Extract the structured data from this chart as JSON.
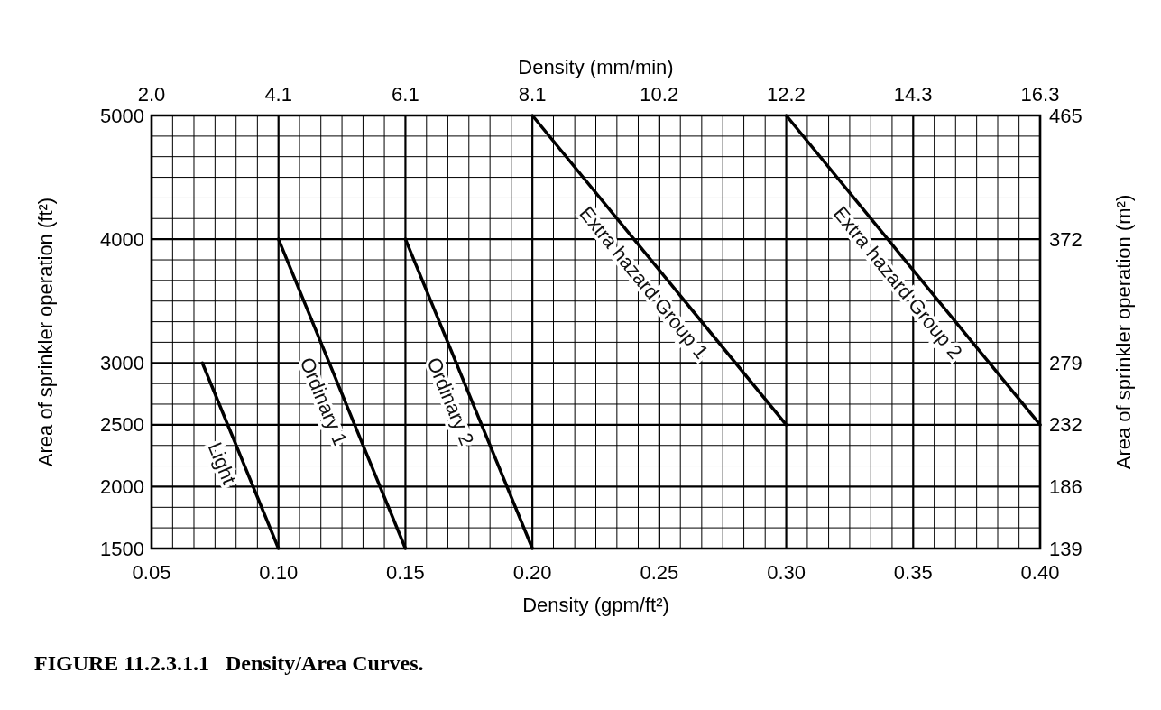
{
  "chart_data": {
    "type": "line",
    "title": "FIGURE 11.2.3.1.1   Density/Area Curves.",
    "xlabel": "Density (gpm/ft²)",
    "x2label": "Density (mm/min)",
    "ylabel": "Area of sprinkler operation (ft²)",
    "y2label": "Area of sprinkler operation (m²)",
    "series": [
      {
        "name": "Light",
        "color": "#000000",
        "x": [
          0.07,
          0.1
        ],
        "values": [
          3000,
          1500
        ]
      },
      {
        "name": "Ordinary 1",
        "color": "#000000",
        "x": [
          0.1,
          0.15
        ],
        "values": [
          4000,
          1500
        ]
      },
      {
        "name": "Ordinary 2",
        "color": "#000000",
        "x": [
          0.15,
          0.2
        ],
        "values": [
          4000,
          1500
        ]
      },
      {
        "name": "Extra hazard Group 1",
        "color": "#000000",
        "x": [
          0.2,
          0.3
        ],
        "values": [
          5000,
          2500
        ]
      },
      {
        "name": "Extra hazard Group 2",
        "color": "#000000",
        "x": [
          0.3,
          0.4
        ],
        "values": [
          5000,
          2500
        ]
      }
    ],
    "xlim": [
      0.05,
      0.4
    ],
    "xticks": [
      {
        "value": 0.05,
        "label": "0.05"
      },
      {
        "value": 0.0583,
        "label": null
      },
      {
        "value": 0.0667,
        "label": null
      },
      {
        "value": 0.075,
        "label": null
      },
      {
        "value": 0.0833,
        "label": null
      },
      {
        "value": 0.0917,
        "label": null
      },
      {
        "value": 0.1,
        "label": "0.10"
      },
      {
        "value": 0.1083,
        "label": null
      },
      {
        "value": 0.1167,
        "label": null
      },
      {
        "value": 0.125,
        "label": null
      },
      {
        "value": 0.1333,
        "label": null
      },
      {
        "value": 0.1417,
        "label": null
      },
      {
        "value": 0.15,
        "label": "0.15"
      },
      {
        "value": 0.1583,
        "label": null
      },
      {
        "value": 0.1667,
        "label": null
      },
      {
        "value": 0.175,
        "label": null
      },
      {
        "value": 0.1833,
        "label": null
      },
      {
        "value": 0.1917,
        "label": null
      },
      {
        "value": 0.2,
        "label": "0.20"
      },
      {
        "value": 0.2083,
        "label": null
      },
      {
        "value": 0.2167,
        "label": null
      },
      {
        "value": 0.225,
        "label": null
      },
      {
        "value": 0.2333,
        "label": null
      },
      {
        "value": 0.2417,
        "label": null
      },
      {
        "value": 0.25,
        "label": "0.25"
      },
      {
        "value": 0.2583,
        "label": null
      },
      {
        "value": 0.2667,
        "label": null
      },
      {
        "value": 0.275,
        "label": null
      },
      {
        "value": 0.2833,
        "label": null
      },
      {
        "value": 0.2917,
        "label": null
      },
      {
        "value": 0.3,
        "label": "0.30"
      },
      {
        "value": 0.3083,
        "label": null
      },
      {
        "value": 0.3167,
        "label": null
      },
      {
        "value": 0.325,
        "label": null
      },
      {
        "value": 0.3333,
        "label": null
      },
      {
        "value": 0.3417,
        "label": null
      },
      {
        "value": 0.35,
        "label": "0.35"
      },
      {
        "value": 0.3583,
        "label": null
      },
      {
        "value": 0.3667,
        "label": null
      },
      {
        "value": 0.375,
        "label": null
      },
      {
        "value": 0.3833,
        "label": null
      },
      {
        "value": 0.3917,
        "label": null
      },
      {
        "value": 0.4,
        "label": "0.40"
      }
    ],
    "x2lim": [
      2.037,
      16.3
    ],
    "x2ticks": [
      {
        "value": 2.037,
        "label": "2.0"
      },
      {
        "value": 4.074,
        "label": "4.1"
      },
      {
        "value": 6.111,
        "label": "6.1"
      },
      {
        "value": 8.149,
        "label": "8.1"
      },
      {
        "value": 10.186,
        "label": "10.2"
      },
      {
        "value": 12.223,
        "label": "12.2"
      },
      {
        "value": 14.26,
        "label": "14.3"
      },
      {
        "value": 16.3,
        "label": "16.3"
      }
    ],
    "ylim": [
      1500,
      5000
    ],
    "yticks": [
      1500,
      {
        "value": 1667,
        "label": null
      },
      {
        "value": 1833,
        "label": null
      },
      2000,
      {
        "value": 2167,
        "label": null
      },
      {
        "value": 2333,
        "label": null
      },
      2500,
      {
        "value": 2667,
        "label": null
      },
      {
        "value": 2833,
        "label": null
      },
      3000,
      {
        "value": 3167,
        "label": null
      },
      {
        "value": 3333,
        "label": null
      },
      {
        "value": 3500,
        "label": null
      },
      {
        "value": 3667,
        "label": null
      },
      {
        "value": 3833,
        "label": null
      },
      4000,
      {
        "value": 4167,
        "label": null
      },
      {
        "value": 4333,
        "label": null
      },
      {
        "value": 4500,
        "label": null
      },
      {
        "value": 4667,
        "label": null
      },
      {
        "value": 4833,
        "label": null
      },
      5000
    ],
    "y2lim": [
      139.35,
      464.5
    ],
    "y2ticks": [
      {
        "value": 139.35,
        "label": "139"
      },
      {
        "value": 185.8,
        "label": "186"
      },
      {
        "value": 232.3,
        "label": "232"
      },
      {
        "value": 278.7,
        "label": "279"
      },
      {
        "value": 371.6,
        "label": "372"
      },
      {
        "value": 464.5,
        "label": "465"
      }
    ],
    "grid": true,
    "marker": "none",
    "line_style": "solid"
  }
}
